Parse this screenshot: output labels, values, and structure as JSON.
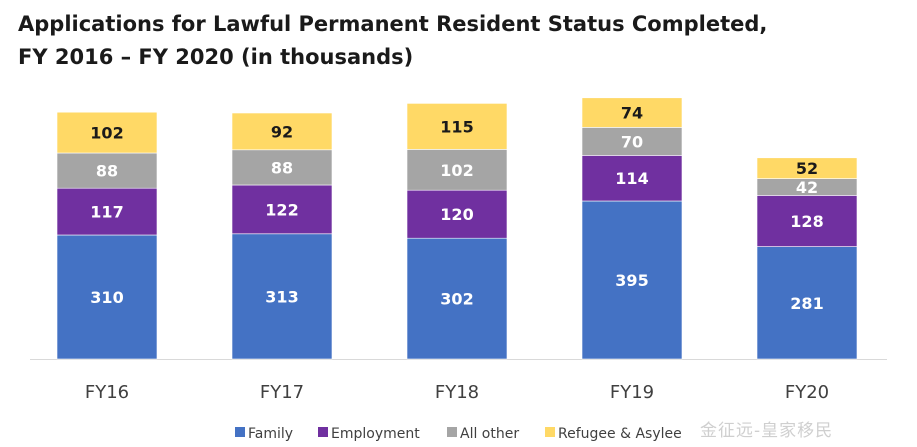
{
  "title": {
    "line1": "Applications for Lawful Permanent Resident Status Completed,",
    "line2": "FY 2016 – FY 2020 (in thousands)"
  },
  "watermark": "金征远-皇家移民",
  "colors": {
    "family": "#4472C4",
    "employment": "#7030A0",
    "other": "#A5A5A5",
    "refugee": "#FFD966",
    "axis": "#d9d9d9"
  },
  "chart_data": {
    "type": "bar",
    "stacked": true,
    "title": "Applications for Lawful Permanent Resident Status Completed, FY 2016 – FY 2020 (in thousands)",
    "categories": [
      "FY16",
      "FY17",
      "FY18",
      "FY19",
      "FY20"
    ],
    "series": [
      {
        "name": "Family",
        "color": "#4472C4",
        "values": [
          310,
          313,
          302,
          395,
          281
        ]
      },
      {
        "name": "Employment",
        "color": "#7030A0",
        "values": [
          117,
          122,
          120,
          114,
          128
        ]
      },
      {
        "name": "All other",
        "color": "#A5A5A5",
        "values": [
          88,
          88,
          102,
          70,
          42
        ]
      },
      {
        "name": "Refugee & Asylee",
        "color": "#FFD966",
        "values": [
          102,
          92,
          115,
          74,
          52
        ]
      }
    ],
    "legend": "bottom",
    "grid": false
  }
}
